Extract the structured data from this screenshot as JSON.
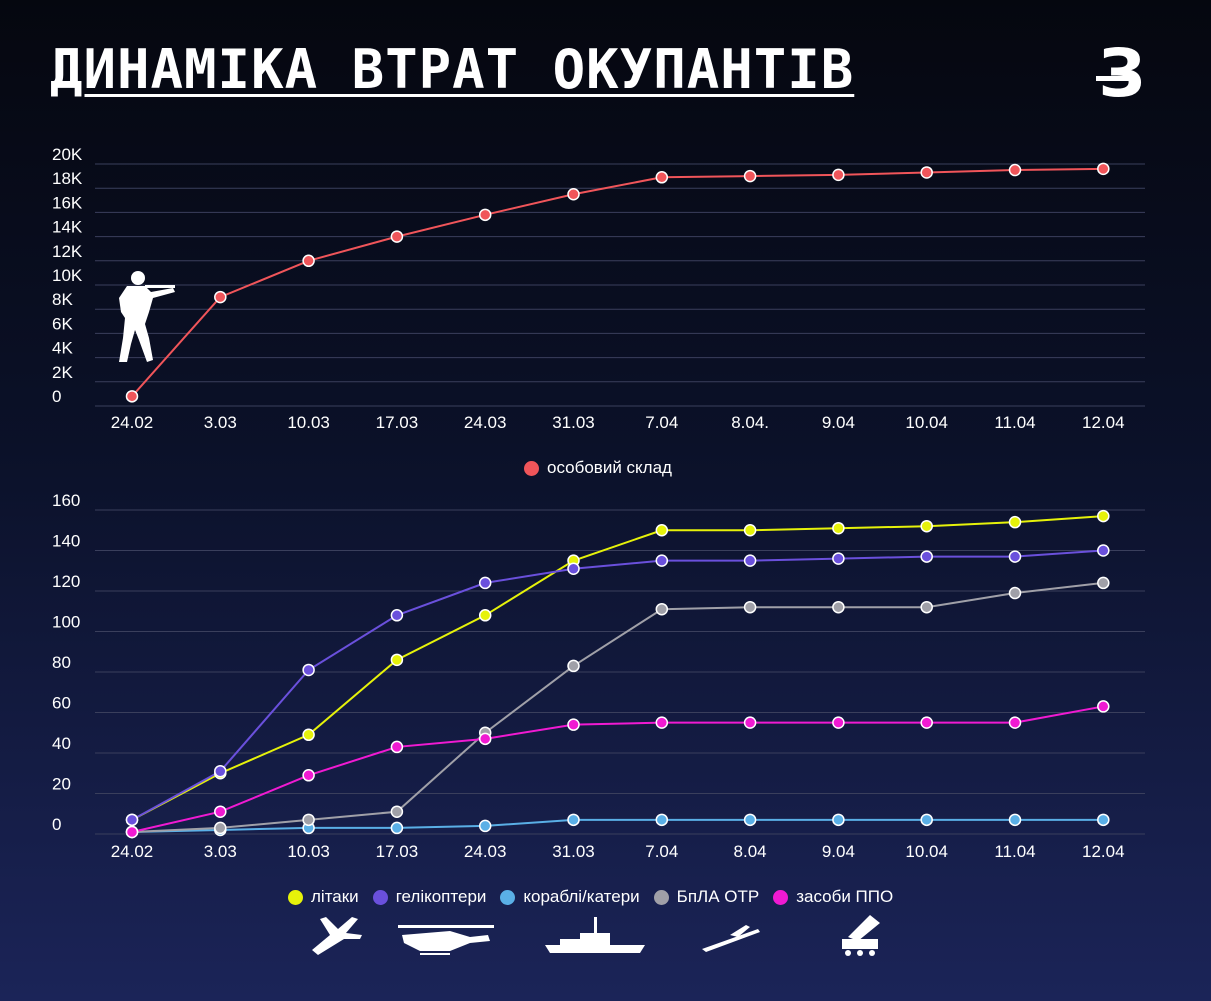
{
  "title": "ДИНАМІКА ВТРАТ ОКУПАНТІВ",
  "logo_letter": "З",
  "icons": [
    "soldier-icon",
    "plane-icon",
    "helicopter-icon",
    "ship-icon",
    "drone-icon",
    "air-defense-icon"
  ],
  "chart_data": [
    {
      "type": "line",
      "categories": [
        "24.02",
        "3.03",
        "10.03",
        "17.03",
        "24.03",
        "31.03",
        "7.04",
        "8.04.",
        "9.04",
        "10.04",
        "11.04",
        "12.04"
      ],
      "yticks": [
        "0",
        "2K",
        "4K",
        "6K",
        "8K",
        "10K",
        "12K",
        "14K",
        "16K",
        "18K",
        "20K"
      ],
      "ylim": [
        0,
        20000
      ],
      "grid": true,
      "legend_position": "bottom-center",
      "series": [
        {
          "name": "особовий склад",
          "color": "#f0555a",
          "values": [
            800,
            9000,
            12000,
            14000,
            15800,
            17500,
            18900,
            19000,
            19100,
            19300,
            19500,
            19600
          ]
        }
      ]
    },
    {
      "type": "line",
      "categories": [
        "24.02",
        "3.03",
        "10.03",
        "17.03",
        "24.03",
        "31.03",
        "7.04",
        "8.04",
        "9.04",
        "10.04",
        "11.04",
        "12.04"
      ],
      "yticks": [
        "0",
        "20",
        "40",
        "60",
        "80",
        "100",
        "120",
        "140",
        "160"
      ],
      "ylim": [
        0,
        160
      ],
      "grid": true,
      "legend_position": "bottom-center",
      "series": [
        {
          "name": "літаки",
          "color": "#e6f20a",
          "values": [
            7,
            30,
            49,
            86,
            108,
            135,
            150,
            150,
            151,
            152,
            154,
            157
          ]
        },
        {
          "name": "гелікоптери",
          "color": "#6a50dc",
          "values": [
            7,
            31,
            81,
            108,
            124,
            131,
            135,
            135,
            136,
            137,
            137,
            140
          ]
        },
        {
          "name": "кораблі/катери",
          "color": "#5aafe6",
          "values": [
            1,
            2,
            3,
            3,
            4,
            7,
            7,
            7,
            7,
            7,
            7,
            7
          ]
        },
        {
          "name": "БпЛА ОТР",
          "color": "#a0a0a8",
          "values": [
            1,
            3,
            7,
            11,
            50,
            83,
            111,
            112,
            112,
            112,
            119,
            124
          ]
        },
        {
          "name": "засоби ППО",
          "color": "#f01ad2",
          "values": [
            1,
            11,
            29,
            43,
            47,
            54,
            55,
            55,
            55,
            55,
            55,
            63
          ]
        }
      ]
    }
  ]
}
